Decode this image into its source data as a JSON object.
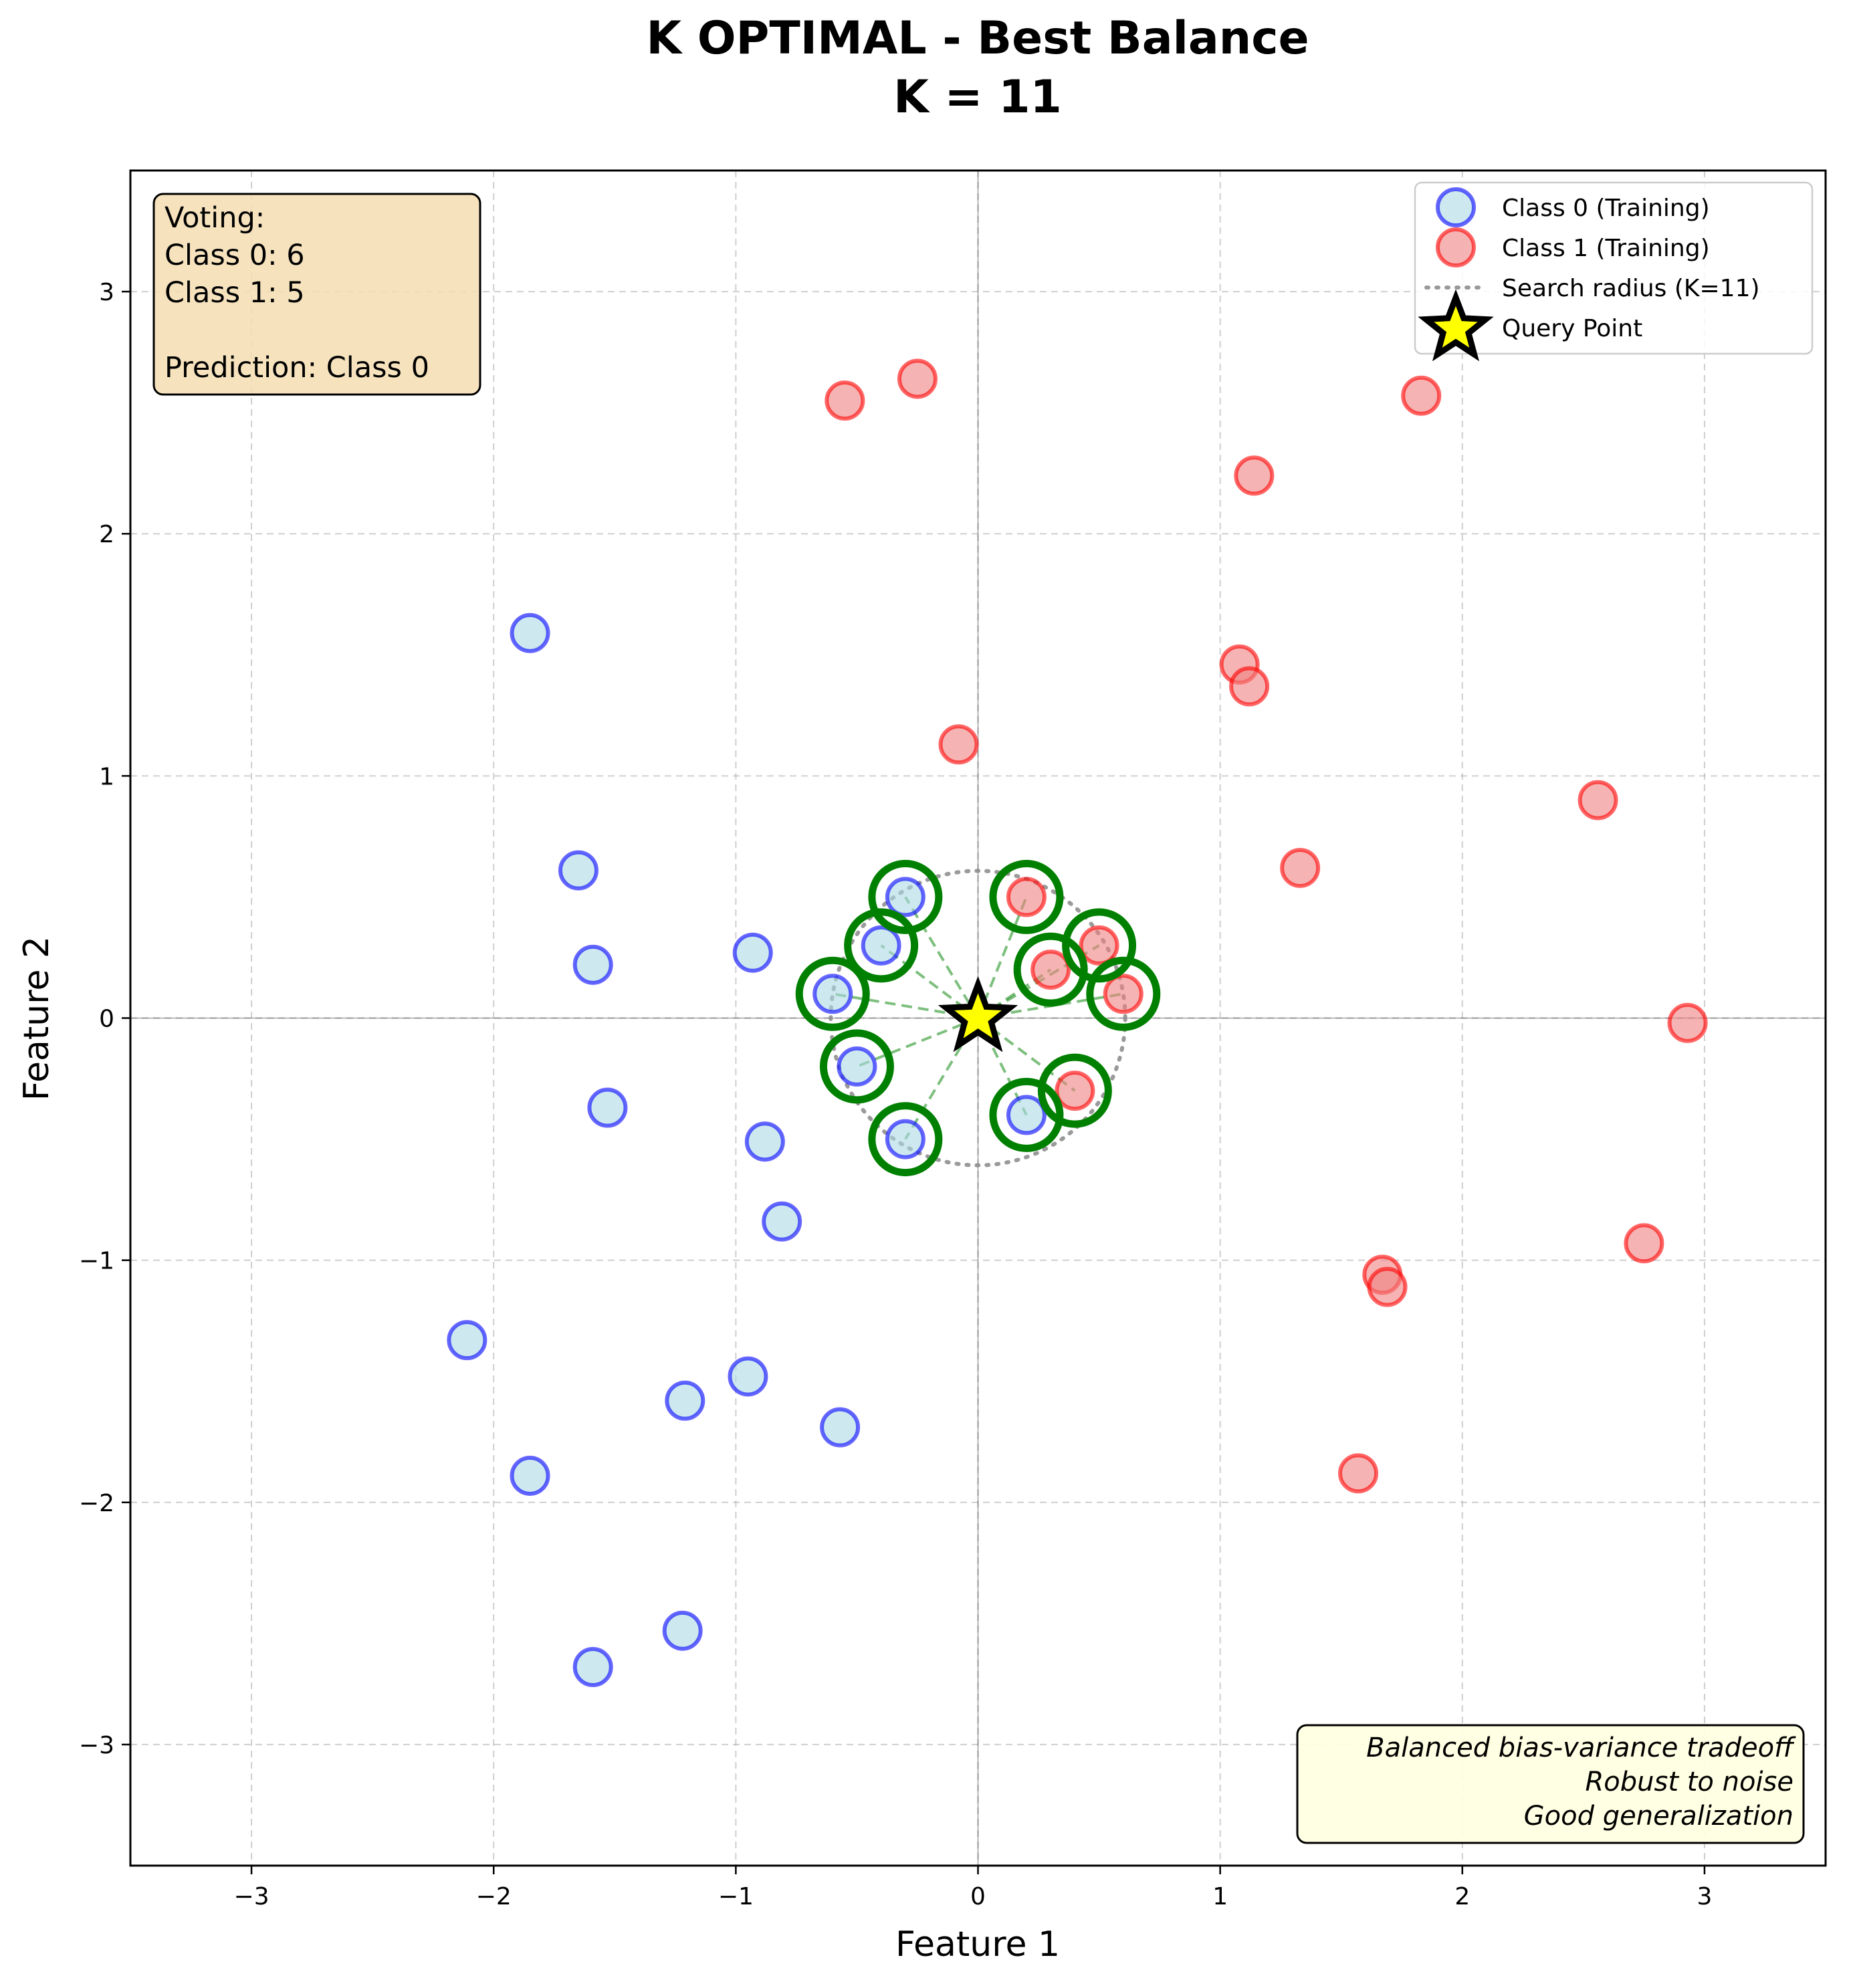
{
  "chart_data": {
    "type": "scatter",
    "title": "K OPTIMAL - Best Balance",
    "subtitle": "K = 11",
    "xlabel": "Feature 1",
    "ylabel": "Feature 2",
    "xlim": [
      -3.5,
      3.5
    ],
    "ylim": [
      -3.5,
      3.5
    ],
    "xticks": [
      -3,
      -2,
      -1,
      0,
      1,
      2,
      3
    ],
    "yticks": [
      -3,
      -2,
      -1,
      0,
      1,
      2,
      3
    ],
    "grid": true,
    "legend_position": "top-right",
    "k": 11,
    "search_radius": 0.608,
    "colors": {
      "class0_fill": "#add8e6",
      "class0_edge": "#0000ff",
      "class1_fill": "#f08080",
      "class1_edge": "#ff0000",
      "neighbor_ring": "#008000",
      "query_fill": "#ffff00",
      "query_edge": "#000000"
    },
    "series": [
      {
        "name": "Class 0 (Training)",
        "points": [
          [
            -1.85,
            1.59
          ],
          [
            -1.65,
            0.61
          ],
          [
            -1.59,
            0.22
          ],
          [
            -0.93,
            0.27
          ],
          [
            -1.53,
            -0.37
          ],
          [
            -0.88,
            -0.51
          ],
          [
            -0.81,
            -0.84
          ],
          [
            -2.11,
            -1.33
          ],
          [
            -1.21,
            -1.58
          ],
          [
            -0.95,
            -1.48
          ],
          [
            -0.57,
            -1.69
          ],
          [
            -1.85,
            -1.89
          ],
          [
            -1.22,
            -2.53
          ],
          [
            -1.59,
            -2.68
          ],
          [
            -0.3,
            0.5
          ],
          [
            -0.4,
            0.3
          ],
          [
            -0.6,
            0.1
          ],
          [
            -0.5,
            -0.2
          ],
          [
            -0.3,
            -0.5
          ],
          [
            0.2,
            -0.4
          ]
        ]
      },
      {
        "name": "Class 1 (Training)",
        "points": [
          [
            -0.55,
            2.55
          ],
          [
            -0.25,
            2.64
          ],
          [
            1.83,
            2.57
          ],
          [
            1.14,
            2.24
          ],
          [
            1.08,
            1.46
          ],
          [
            1.12,
            1.37
          ],
          [
            -0.08,
            1.13
          ],
          [
            2.56,
            0.9
          ],
          [
            1.33,
            0.62
          ],
          [
            2.93,
            -0.02
          ],
          [
            1.67,
            -1.06
          ],
          [
            1.69,
            -1.11
          ],
          [
            2.75,
            -0.93
          ],
          [
            1.57,
            -1.88
          ],
          [
            0.2,
            0.5
          ],
          [
            0.5,
            0.3
          ],
          [
            0.3,
            0.2
          ],
          [
            0.6,
            0.1
          ],
          [
            0.4,
            -0.3
          ]
        ]
      },
      {
        "name": "Search radius (K=11)"
      },
      {
        "name": "Query Point",
        "points": [
          [
            0,
            0
          ]
        ]
      }
    ],
    "neighbors": [
      [
        -0.3,
        0.5
      ],
      [
        0.2,
        0.5
      ],
      [
        0.5,
        0.3
      ],
      [
        -0.4,
        0.3
      ],
      [
        0.3,
        0.2
      ],
      [
        -0.6,
        0.1
      ],
      [
        0.6,
        0.1
      ],
      [
        -0.5,
        -0.2
      ],
      [
        0.4,
        -0.3
      ],
      [
        0.2,
        -0.4
      ],
      [
        -0.3,
        -0.5
      ]
    ],
    "voting_box": {
      "lines": [
        "Voting:",
        "Class 0: 6",
        "Class 1: 5",
        "",
        "Prediction: Class 0"
      ]
    },
    "note_box": {
      "lines": [
        "Balanced bias-variance tradeoff",
        "Robust to noise",
        "Good generalization"
      ]
    }
  }
}
